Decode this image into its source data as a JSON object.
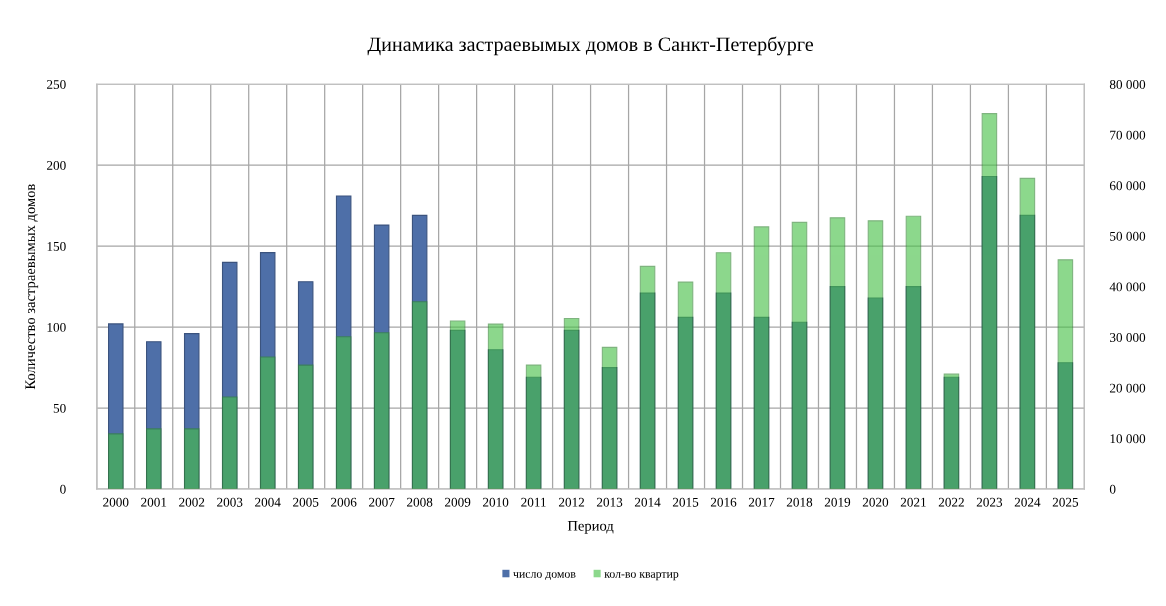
{
  "chart_data": {
    "type": "bar",
    "title": "Динамика застраевымых домов в Санкт-Петербурге",
    "xlabel": "Период",
    "ylabel": "Количество застраевымых домов",
    "categories": [
      "2000",
      "2001",
      "2002",
      "2003",
      "2004",
      "2005",
      "2006",
      "2007",
      "2008",
      "2009",
      "2010",
      "2011",
      "2012",
      "2013",
      "2014",
      "2015",
      "2016",
      "2017",
      "2018",
      "2019",
      "2020",
      "2021",
      "2022",
      "2023",
      "2024",
      "2025"
    ],
    "series": [
      {
        "name": "число домов",
        "color": "#4e6fa8",
        "values": [
          102,
          91,
          96,
          140,
          146,
          128,
          181,
          163,
          169,
          98,
          86,
          69,
          98,
          75,
          121,
          106,
          121,
          106,
          103,
          125,
          118,
          125,
          69,
          193,
          169,
          78
        ]
      },
      {
        "name": "кол-во квартир",
        "color": "#8cd88c",
        "axis": "y2",
        "values": [
          10900,
          11900,
          11900,
          18200,
          26100,
          24500,
          30100,
          30900,
          37000,
          33200,
          32600,
          24500,
          33700,
          28000,
          44000,
          40900,
          46700,
          51800,
          52700,
          53600,
          53000,
          53900,
          22700,
          74200,
          61400,
          45300
        ]
      }
    ],
    "ylim": [
      0,
      250
    ],
    "yticks": [
      0,
      50,
      100,
      150,
      200,
      250
    ],
    "y2lim": [
      0,
      80000
    ],
    "y2ticks": [
      0,
      {
        "value": 10000,
        "label": "10 000"
      },
      {
        "value": 20000,
        "label": "20 000"
      },
      {
        "value": 30000,
        "label": "30 000"
      },
      {
        "value": 40000,
        "label": "40 000"
      },
      {
        "value": 50000,
        "label": "50 000"
      },
      {
        "value": 60000,
        "label": "60 000"
      },
      {
        "value": 70000,
        "label": "70 000"
      },
      {
        "value": 80000,
        "label": "80 000"
      }
    ],
    "grid": true,
    "legend": "bottom"
  }
}
